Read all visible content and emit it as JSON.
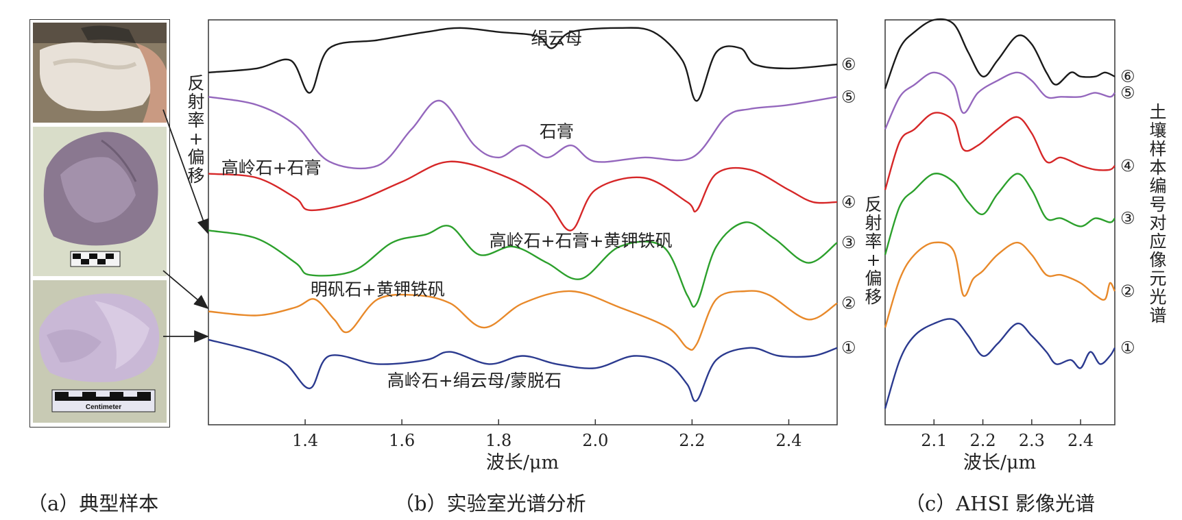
{
  "panel_a": {
    "caption": "（a）典型样本",
    "scale_label": "Centimeter"
  },
  "panel_b": {
    "caption": "（b）实验室光谱分析",
    "ylabel": "反射率+偏移"
  },
  "panel_c": {
    "caption": "（c）AHSI 影像光谱",
    "ylabel": "反射率+偏移",
    "side_label": "土壤样本编号对应像元光谱"
  },
  "colors": {
    "s1": "#2b3a8f",
    "s2": "#e8892a",
    "s3": "#2ca02c",
    "s4": "#d62728",
    "s5": "#9467bd",
    "s6": "#1a1a1a"
  },
  "chart_data": [
    {
      "type": "line",
      "xlabel": "波长/μm",
      "ylabel": "反射率+偏移",
      "xlim": [
        1.2,
        2.5
      ],
      "ylim": [
        0,
        100
      ],
      "xticks": [
        1.4,
        1.6,
        1.8,
        2.0,
        2.2,
        2.4
      ],
      "grid": false,
      "annotations": [
        {
          "text": "绢云母",
          "x": 1.92,
          "y": 94
        },
        {
          "text": "石膏",
          "x": 1.92,
          "y": 71
        },
        {
          "text": "高岭石+石膏",
          "x": 1.33,
          "y": 62
        },
        {
          "text": "高岭石+石膏+黄钾铁矾",
          "x": 1.97,
          "y": 44
        },
        {
          "text": "明矾石+黄钾铁矾",
          "x": 1.55,
          "y": 32
        },
        {
          "text": "高岭石+绢云母/蒙脱石",
          "x": 1.75,
          "y": 9.5
        }
      ],
      "series": [
        {
          "name": "①",
          "color": "#2b3a8f",
          "x": [
            1.2,
            1.3,
            1.36,
            1.41,
            1.45,
            1.55,
            1.65,
            1.7,
            1.78,
            1.85,
            1.92,
            2.0,
            2.08,
            2.15,
            2.19,
            2.21,
            2.25,
            2.32,
            2.38,
            2.45,
            2.5
          ],
          "y": [
            21,
            18,
            15,
            9,
            17,
            15,
            16,
            18,
            15,
            17,
            15,
            14,
            17,
            15,
            10,
            6,
            16,
            19,
            17,
            17,
            19
          ]
        },
        {
          "name": "②",
          "color": "#e8892a",
          "x": [
            1.2,
            1.3,
            1.38,
            1.42,
            1.46,
            1.49,
            1.55,
            1.63,
            1.7,
            1.77,
            1.85,
            1.95,
            2.05,
            2.15,
            2.19,
            2.21,
            2.25,
            2.31,
            2.36,
            2.44,
            2.5
          ],
          "y": [
            28,
            27,
            29,
            31,
            26,
            23,
            31,
            32,
            30,
            24,
            30,
            33,
            29,
            24,
            19,
            20,
            31,
            33,
            32,
            26,
            30
          ]
        },
        {
          "name": "③",
          "color": "#2ca02c",
          "x": [
            1.2,
            1.3,
            1.38,
            1.41,
            1.5,
            1.58,
            1.65,
            1.7,
            1.76,
            1.83,
            1.9,
            1.97,
            2.05,
            2.14,
            2.19,
            2.21,
            2.25,
            2.31,
            2.37,
            2.44,
            2.5
          ],
          "y": [
            48,
            46,
            40,
            37,
            38,
            45,
            47,
            49,
            42,
            44,
            40,
            36,
            44,
            44,
            32,
            30,
            44,
            50,
            46,
            40,
            45
          ]
        },
        {
          "name": "④",
          "color": "#d62728",
          "x": [
            1.2,
            1.3,
            1.38,
            1.41,
            1.5,
            1.6,
            1.7,
            1.82,
            1.9,
            1.95,
            2.0,
            2.1,
            2.19,
            2.21,
            2.25,
            2.32,
            2.4,
            2.45,
            2.5
          ],
          "y": [
            62,
            61,
            56,
            53,
            55,
            60,
            65,
            61,
            55,
            48,
            58,
            61,
            55,
            53,
            62,
            63,
            58,
            55,
            55
          ]
        },
        {
          "name": "⑤",
          "color": "#9467bd",
          "x": [
            1.2,
            1.3,
            1.38,
            1.45,
            1.55,
            1.62,
            1.68,
            1.75,
            1.8,
            1.85,
            1.9,
            1.95,
            2.0,
            2.1,
            2.2,
            2.27,
            2.32,
            2.4,
            2.5
          ],
          "y": [
            81,
            79,
            74,
            65,
            64,
            73,
            80,
            69,
            66,
            69,
            66,
            69,
            65,
            66,
            66,
            76,
            78,
            79,
            81
          ]
        },
        {
          "name": "⑥",
          "color": "#1a1a1a",
          "x": [
            1.2,
            1.3,
            1.37,
            1.41,
            1.45,
            1.55,
            1.65,
            1.72,
            1.8,
            1.88,
            1.91,
            1.95,
            2.05,
            2.12,
            2.18,
            2.21,
            2.25,
            2.3,
            2.33,
            2.4,
            2.5
          ],
          "y": [
            87,
            88,
            90,
            82,
            93,
            95,
            97,
            98,
            97,
            96,
            93,
            97,
            98,
            97,
            90,
            80,
            92,
            93,
            89,
            88,
            89
          ]
        }
      ]
    },
    {
      "type": "line",
      "xlabel": "波长/μm",
      "ylabel": "",
      "xlim": [
        2.0,
        2.47
      ],
      "ylim": [
        0,
        100
      ],
      "xticks": [
        2.1,
        2.2,
        2.3,
        2.4
      ],
      "grid": false,
      "series": [
        {
          "name": "①",
          "color": "#2b3a8f",
          "x": [
            2.0,
            2.03,
            2.06,
            2.1,
            2.14,
            2.17,
            2.2,
            2.23,
            2.27,
            2.3,
            2.33,
            2.35,
            2.38,
            2.4,
            2.42,
            2.44,
            2.46,
            2.47
          ],
          "y": [
            4,
            16,
            22,
            25,
            26,
            22,
            17,
            20,
            25,
            22,
            18,
            15,
            16,
            14,
            18,
            15,
            17,
            19
          ]
        },
        {
          "name": "②",
          "color": "#e8892a",
          "x": [
            2.0,
            2.03,
            2.06,
            2.1,
            2.14,
            2.16,
            2.18,
            2.2,
            2.23,
            2.27,
            2.3,
            2.33,
            2.36,
            2.4,
            2.43,
            2.45,
            2.46,
            2.47
          ],
          "y": [
            24,
            36,
            42,
            45,
            43,
            32,
            36,
            38,
            42,
            45,
            42,
            37,
            37,
            35,
            32,
            31,
            35,
            33
          ]
        },
        {
          "name": "③",
          "color": "#2ca02c",
          "x": [
            2.0,
            2.03,
            2.06,
            2.1,
            2.14,
            2.17,
            2.2,
            2.23,
            2.27,
            2.3,
            2.33,
            2.36,
            2.4,
            2.43,
            2.46,
            2.47
          ],
          "y": [
            42,
            54,
            58,
            62,
            60,
            55,
            52,
            57,
            62,
            58,
            51,
            51,
            49,
            51,
            50,
            51
          ]
        },
        {
          "name": "④",
          "color": "#d62728",
          "x": [
            2.0,
            2.03,
            2.06,
            2.1,
            2.14,
            2.16,
            2.19,
            2.23,
            2.27,
            2.3,
            2.33,
            2.36,
            2.4,
            2.43,
            2.46,
            2.47
          ],
          "y": [
            58,
            70,
            73,
            77,
            75,
            68,
            69,
            73,
            76,
            72,
            65,
            66,
            64,
            63,
            63,
            64
          ]
        },
        {
          "name": "⑤",
          "color": "#9467bd",
          "x": [
            2.0,
            2.03,
            2.06,
            2.1,
            2.14,
            2.16,
            2.19,
            2.23,
            2.27,
            2.3,
            2.33,
            2.36,
            2.4,
            2.43,
            2.46,
            2.47
          ],
          "y": [
            73,
            81,
            84,
            87,
            84,
            77,
            82,
            85,
            87,
            85,
            81,
            81,
            81,
            82,
            81,
            82
          ]
        },
        {
          "name": "⑥",
          "color": "#1a1a1a",
          "x": [
            2.0,
            2.03,
            2.06,
            2.1,
            2.14,
            2.17,
            2.2,
            2.23,
            2.27,
            2.3,
            2.33,
            2.35,
            2.38,
            2.4,
            2.43,
            2.45,
            2.47
          ],
          "y": [
            83,
            93,
            97,
            100,
            99,
            92,
            86,
            90,
            96,
            94,
            87,
            84,
            87,
            86,
            86,
            87,
            86
          ]
        }
      ]
    }
  ]
}
